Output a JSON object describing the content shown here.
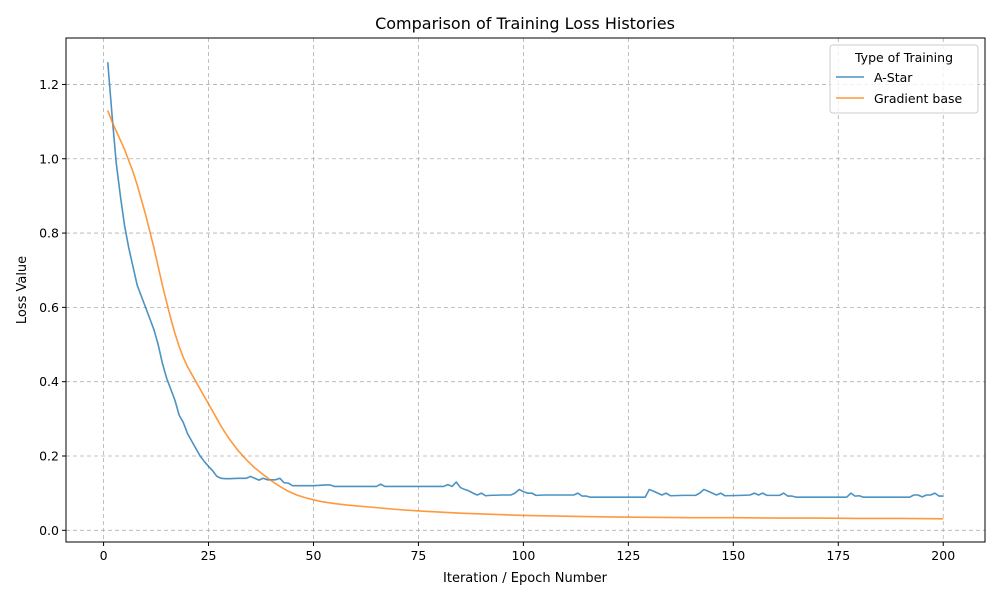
{
  "chart_data": {
    "type": "line",
    "title": "Comparison of Training Loss Histories",
    "xlabel": "Iteration / Epoch Number",
    "ylabel": "Loss Value",
    "xlim": [
      -8.95,
      209.95
    ],
    "ylim": [
      -0.0315,
      1.325
    ],
    "xticks": [
      0,
      25,
      50,
      75,
      100,
      125,
      150,
      175,
      200
    ],
    "xtick_labels": [
      "0",
      "25",
      "50",
      "75",
      "100",
      "125",
      "150",
      "175",
      "200"
    ],
    "yticks": [
      0.0,
      0.2,
      0.4,
      0.6,
      0.8,
      1.0,
      1.2
    ],
    "ytick_labels": [
      "0.0",
      "0.2",
      "0.4",
      "0.6",
      "0.8",
      "1.0",
      "1.2"
    ],
    "grid": true,
    "legend": {
      "title": "Type of Training",
      "placement": "top-right"
    },
    "series": [
      {
        "name": "A-Star",
        "color": "#1f77b4",
        "points": [
          [
            1,
            1.26
          ],
          [
            2,
            1.12
          ],
          [
            3,
            0.99
          ],
          [
            4,
            0.9
          ],
          [
            5,
            0.82
          ],
          [
            6,
            0.76
          ],
          [
            7,
            0.71
          ],
          [
            8,
            0.66
          ],
          [
            9,
            0.63
          ],
          [
            10,
            0.6
          ],
          [
            11,
            0.57
          ],
          [
            12,
            0.54
          ],
          [
            13,
            0.5
          ],
          [
            14,
            0.45
          ],
          [
            15,
            0.41
          ],
          [
            16,
            0.38
          ],
          [
            17,
            0.35
          ],
          [
            18,
            0.31
          ],
          [
            19,
            0.29
          ],
          [
            20,
            0.26
          ],
          [
            21,
            0.24
          ],
          [
            22,
            0.22
          ],
          [
            23,
            0.2
          ],
          [
            24,
            0.185
          ],
          [
            25,
            0.172
          ],
          [
            26,
            0.16
          ],
          [
            27,
            0.145
          ],
          [
            28,
            0.14
          ],
          [
            29,
            0.139
          ],
          [
            30,
            0.139
          ],
          [
            32,
            0.14
          ],
          [
            34,
            0.14
          ],
          [
            35,
            0.145
          ],
          [
            36,
            0.14
          ],
          [
            37,
            0.135
          ],
          [
            38,
            0.14
          ],
          [
            39,
            0.136
          ],
          [
            41,
            0.136
          ],
          [
            42,
            0.14
          ],
          [
            43,
            0.128
          ],
          [
            44,
            0.127
          ],
          [
            45,
            0.12
          ],
          [
            47,
            0.12
          ],
          [
            50,
            0.12
          ],
          [
            53,
            0.122
          ],
          [
            54,
            0.122
          ],
          [
            55,
            0.118
          ],
          [
            60,
            0.118
          ],
          [
            65,
            0.118
          ],
          [
            66,
            0.124
          ],
          [
            67,
            0.118
          ],
          [
            70,
            0.118
          ],
          [
            75,
            0.118
          ],
          [
            80,
            0.118
          ],
          [
            81,
            0.118
          ],
          [
            82,
            0.123
          ],
          [
            83,
            0.118
          ],
          [
            84,
            0.13
          ],
          [
            85,
            0.115
          ],
          [
            86,
            0.11
          ],
          [
            87,
            0.106
          ],
          [
            88,
            0.1
          ],
          [
            89,
            0.095
          ],
          [
            90,
            0.1
          ],
          [
            91,
            0.093
          ],
          [
            92,
            0.094
          ],
          [
            95,
            0.095
          ],
          [
            97,
            0.095
          ],
          [
            98,
            0.1
          ],
          [
            99,
            0.11
          ],
          [
            100,
            0.104
          ],
          [
            101,
            0.1
          ],
          [
            102,
            0.1
          ],
          [
            103,
            0.094
          ],
          [
            105,
            0.095
          ],
          [
            108,
            0.095
          ],
          [
            112,
            0.095
          ],
          [
            113,
            0.1
          ],
          [
            114,
            0.092
          ],
          [
            115,
            0.092
          ],
          [
            116,
            0.089
          ],
          [
            120,
            0.089
          ],
          [
            125,
            0.089
          ],
          [
            129,
            0.089
          ],
          [
            130,
            0.11
          ],
          [
            131,
            0.105
          ],
          [
            132,
            0.1
          ],
          [
            133,
            0.095
          ],
          [
            134,
            0.1
          ],
          [
            135,
            0.093
          ],
          [
            138,
            0.094
          ],
          [
            141,
            0.094
          ],
          [
            142,
            0.1
          ],
          [
            143,
            0.11
          ],
          [
            144,
            0.105
          ],
          [
            145,
            0.1
          ],
          [
            146,
            0.095
          ],
          [
            147,
            0.1
          ],
          [
            148,
            0.093
          ],
          [
            152,
            0.094
          ],
          [
            154,
            0.095
          ],
          [
            155,
            0.1
          ],
          [
            156,
            0.095
          ],
          [
            157,
            0.1
          ],
          [
            158,
            0.094
          ],
          [
            161,
            0.094
          ],
          [
            162,
            0.1
          ],
          [
            163,
            0.092
          ],
          [
            164,
            0.092
          ],
          [
            165,
            0.089
          ],
          [
            170,
            0.089
          ],
          [
            175,
            0.089
          ],
          [
            177,
            0.089
          ],
          [
            178,
            0.1
          ],
          [
            179,
            0.092
          ],
          [
            180,
            0.093
          ],
          [
            181,
            0.089
          ],
          [
            185,
            0.089
          ],
          [
            192,
            0.089
          ],
          [
            193,
            0.095
          ],
          [
            194,
            0.095
          ],
          [
            195,
            0.09
          ],
          [
            196,
            0.095
          ],
          [
            197,
            0.095
          ],
          [
            198,
            0.1
          ],
          [
            199,
            0.092
          ],
          [
            200,
            0.092
          ]
        ]
      },
      {
        "name": "Gradient base",
        "color": "#ff7f0e",
        "points": [
          [
            1,
            1.13
          ],
          [
            2,
            1.1
          ],
          [
            3,
            1.075
          ],
          [
            4,
            1.05
          ],
          [
            5,
            1.025
          ],
          [
            6,
            0.995
          ],
          [
            7,
            0.965
          ],
          [
            8,
            0.93
          ],
          [
            9,
            0.89
          ],
          [
            10,
            0.85
          ],
          [
            11,
            0.805
          ],
          [
            12,
            0.76
          ],
          [
            13,
            0.71
          ],
          [
            14,
            0.66
          ],
          [
            15,
            0.615
          ],
          [
            16,
            0.57
          ],
          [
            17,
            0.53
          ],
          [
            18,
            0.495
          ],
          [
            19,
            0.465
          ],
          [
            20,
            0.44
          ],
          [
            21,
            0.42
          ],
          [
            22,
            0.4
          ],
          [
            23,
            0.38
          ],
          [
            24,
            0.36
          ],
          [
            25,
            0.34
          ],
          [
            26,
            0.32
          ],
          [
            27,
            0.3
          ],
          [
            28,
            0.28
          ],
          [
            29,
            0.262
          ],
          [
            30,
            0.245
          ],
          [
            32,
            0.215
          ],
          [
            34,
            0.19
          ],
          [
            36,
            0.168
          ],
          [
            38,
            0.15
          ],
          [
            40,
            0.133
          ],
          [
            42,
            0.118
          ],
          [
            44,
            0.105
          ],
          [
            46,
            0.095
          ],
          [
            48,
            0.088
          ],
          [
            50,
            0.082
          ],
          [
            52,
            0.077
          ],
          [
            55,
            0.072
          ],
          [
            58,
            0.068
          ],
          [
            60,
            0.066
          ],
          [
            65,
            0.061
          ],
          [
            70,
            0.056
          ],
          [
            75,
            0.052
          ],
          [
            80,
            0.049
          ],
          [
            85,
            0.046
          ],
          [
            90,
            0.044
          ],
          [
            95,
            0.042
          ],
          [
            100,
            0.04
          ],
          [
            110,
            0.038
          ],
          [
            120,
            0.036
          ],
          [
            130,
            0.035
          ],
          [
            140,
            0.034
          ],
          [
            150,
            0.034
          ],
          [
            160,
            0.033
          ],
          [
            170,
            0.033
          ],
          [
            180,
            0.032
          ],
          [
            190,
            0.032
          ],
          [
            200,
            0.031
          ]
        ]
      }
    ]
  }
}
